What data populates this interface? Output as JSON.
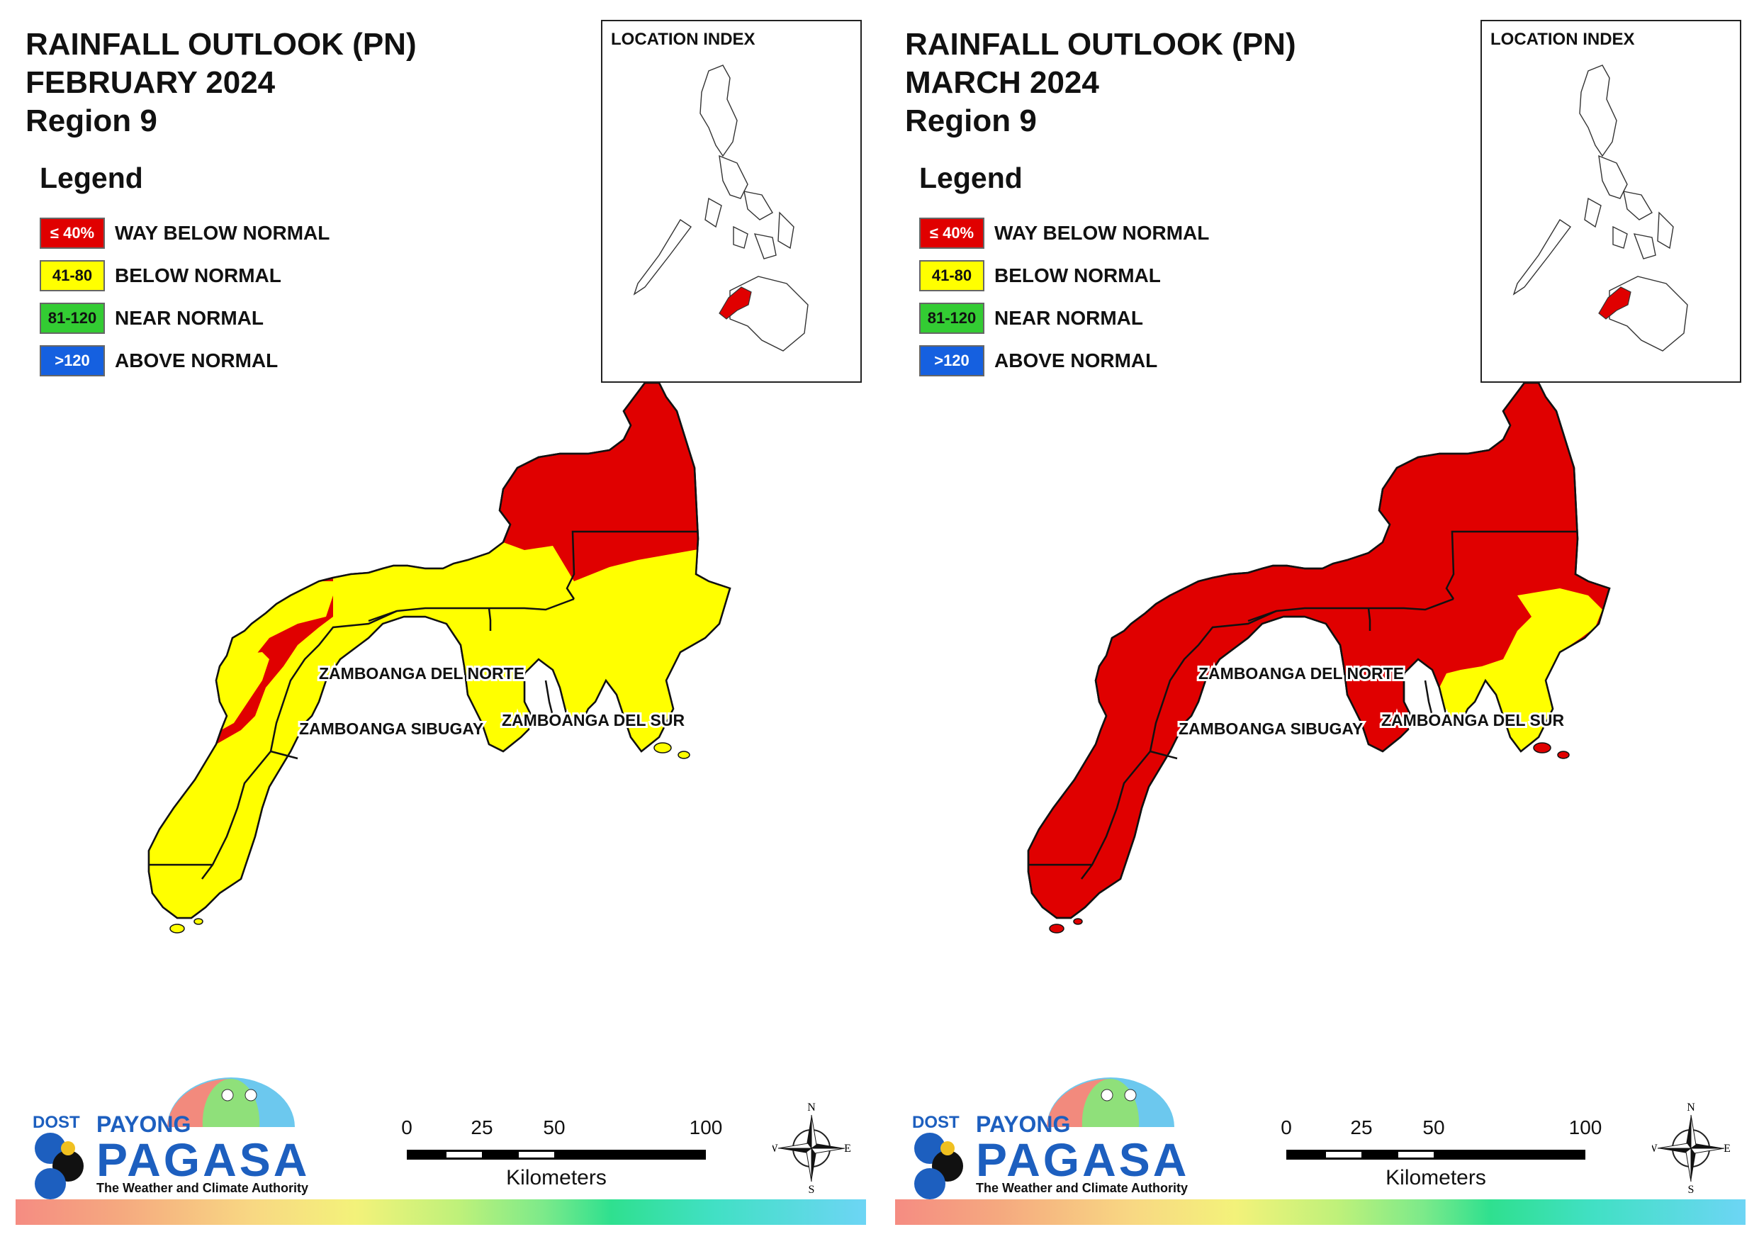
{
  "panels": [
    {
      "title_line1": "RAINFALL OUTLOOK (PN)",
      "title_line2": "FEBRUARY 2024",
      "title_line3": "Region 9",
      "legend": {
        "heading": "Legend",
        "items": [
          {
            "swatch": "≤ 40%",
            "label": "WAY BELOW NORMAL",
            "color": "#e00000"
          },
          {
            "swatch": "41-80",
            "label": "BELOW NORMAL",
            "color": "#ffff00"
          },
          {
            "swatch": "81-120",
            "label": "NEAR NORMAL",
            "color": "#33cc33"
          },
          {
            "swatch": ">120",
            "label": "ABOVE NORMAL",
            "color": "#1560e0"
          }
        ]
      },
      "inset_title": "LOCATION INDEX",
      "provinces": [
        "ZAMBOANGA DEL NORTE",
        "ZAMBOANGA SIBUGAY",
        "ZAMBOANGA DEL SUR"
      ],
      "scale": {
        "ticks": [
          "0",
          "25",
          "50",
          "100"
        ],
        "units": "Kilometers"
      },
      "compass": {
        "n": "N",
        "s": "S",
        "e": "E",
        "w": "W"
      },
      "logo": {
        "dost": "DOST",
        "payong": "PAYONG",
        "pagasa": "PAGASA",
        "tagline": "The Weather and Climate Authority"
      },
      "category_by_area": "mixed: way below normal in northeast and west coast, below normal elsewhere"
    },
    {
      "title_line1": "RAINFALL OUTLOOK (PN)",
      "title_line2": "MARCH 2024",
      "title_line3": "Region 9",
      "legend": {
        "heading": "Legend",
        "items": [
          {
            "swatch": "≤ 40%",
            "label": "WAY BELOW NORMAL",
            "color": "#e00000"
          },
          {
            "swatch": "41-80",
            "label": "BELOW NORMAL",
            "color": "#ffff00"
          },
          {
            "swatch": "81-120",
            "label": "NEAR NORMAL",
            "color": "#33cc33"
          },
          {
            "swatch": ">120",
            "label": "ABOVE NORMAL",
            "color": "#1560e0"
          }
        ]
      },
      "inset_title": "LOCATION INDEX",
      "provinces": [
        "ZAMBOANGA DEL NORTE",
        "ZAMBOANGA SIBUGAY",
        "ZAMBOANGA DEL SUR"
      ],
      "scale": {
        "ticks": [
          "0",
          "25",
          "50",
          "100"
        ],
        "units": "Kilometers"
      },
      "compass": {
        "n": "N",
        "s": "S",
        "e": "E",
        "w": "W"
      },
      "logo": {
        "dost": "DOST",
        "payong": "PAYONG",
        "pagasa": "PAGASA",
        "tagline": "The Weather and Climate Authority"
      }
    }
  ]
}
